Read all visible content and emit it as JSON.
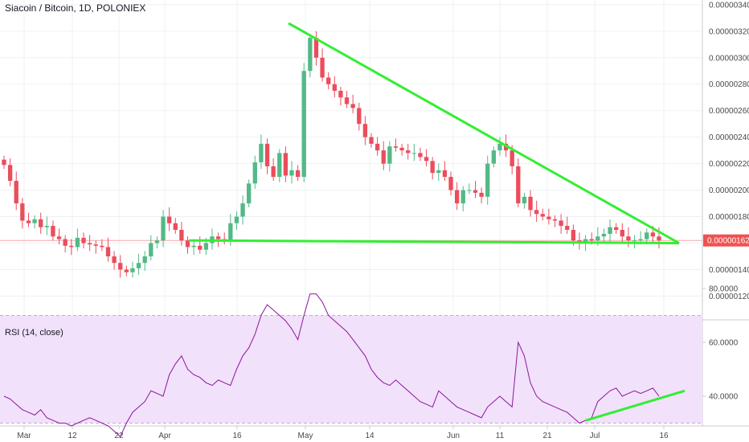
{
  "header": {
    "title": "Siacoin / Bitcoin, 1D, POLONIEX"
  },
  "rsi": {
    "label": "RSI (14, close)"
  },
  "colors": {
    "up": "#53b987",
    "down": "#eb4d5c",
    "trendline": "#33ee33",
    "rsi_line": "#8e1599",
    "rsi_band": "#f1e1fb",
    "price_badge": "#ef5350"
  },
  "chart_data": [
    {
      "type": "candlestick",
      "title": "Siacoin / Bitcoin, 1D, POLONIEX",
      "y_axis_position": "right",
      "yticks": [
        "0.00000120",
        "0.00000140",
        "0.00000160",
        "0.00000180",
        "0.00000200",
        "0.00000220",
        "0.00000240",
        "0.00000260",
        "0.00000280",
        "0.00000300",
        "0.00000320",
        "0.00000340"
      ],
      "ylim": [
        1.1e-06,
        3.42e-06
      ],
      "xticks": [
        "Mar",
        "12",
        "22",
        "Apr",
        "16",
        "May",
        "14",
        "Jun",
        "11",
        "21",
        "Jul",
        "16"
      ],
      "last_price_label": "0.00000162",
      "close_approx": [
        219,
        207,
        190,
        177,
        175,
        178,
        172,
        173,
        165,
        163,
        158,
        157,
        164,
        160,
        159,
        158,
        157,
        150,
        145,
        140,
        138,
        141,
        145,
        150,
        160,
        162,
        180,
        175,
        170,
        162,
        157,
        158,
        155,
        160,
        165,
        163,
        162,
        175,
        180,
        190,
        205,
        221,
        235,
        218,
        210,
        228,
        211,
        215,
        210,
        290,
        315,
        300,
        285,
        280,
        275,
        270,
        265,
        262,
        250,
        240,
        235,
        230,
        220,
        233,
        232,
        230,
        228,
        228,
        225,
        222,
        213,
        215,
        210,
        200,
        190,
        200,
        200,
        198,
        195,
        220,
        230,
        235,
        230,
        218,
        190,
        195,
        185,
        182,
        180,
        178,
        177,
        173,
        170,
        162,
        160,
        163,
        162,
        165,
        167,
        172,
        170,
        165,
        162,
        162,
        163,
        168,
        165,
        162
      ],
      "trendlines": [
        {
          "from": [
            "Apr 6",
            1.62e-06
          ],
          "to": [
            "Jul 18",
            1.6e-06
          ]
        },
        {
          "from": [
            "Apr 27",
            3.26e-06
          ],
          "to": [
            "Jul 18",
            1.6e-06
          ]
        }
      ]
    },
    {
      "type": "line",
      "title": "RSI (14, close)",
      "yticks": [
        "40.0000",
        "60.0000",
        "80.0000"
      ],
      "ylim": [
        20,
        82
      ],
      "band": [
        30,
        70
      ],
      "values": [
        40,
        39,
        37,
        35,
        34,
        33,
        35,
        32,
        31,
        30,
        30,
        29,
        30,
        31,
        32,
        31,
        30,
        29,
        27,
        25,
        30,
        34,
        36,
        38,
        42,
        41,
        40,
        48,
        52,
        55,
        50,
        48,
        47,
        45,
        44,
        46,
        45,
        44,
        50,
        55,
        58,
        63,
        70,
        74,
        72,
        70,
        68,
        65,
        61,
        70,
        78,
        78,
        75,
        70,
        68,
        66,
        64,
        61,
        58,
        55,
        50,
        47,
        45,
        44,
        46,
        44,
        42,
        40,
        38,
        37,
        36,
        42,
        40,
        38,
        36,
        35,
        34,
        33,
        32,
        36,
        38,
        40,
        38,
        36,
        60,
        55,
        45,
        40,
        38,
        37,
        36,
        35,
        34,
        32,
        30,
        31,
        32,
        38,
        40,
        42,
        43,
        40,
        41,
        42,
        41,
        42,
        43,
        40
      ],
      "trendline": {
        "from": [
          30,
          "Jun 29"
        ],
        "to": [
          42,
          "Jul 18"
        ]
      }
    }
  ]
}
